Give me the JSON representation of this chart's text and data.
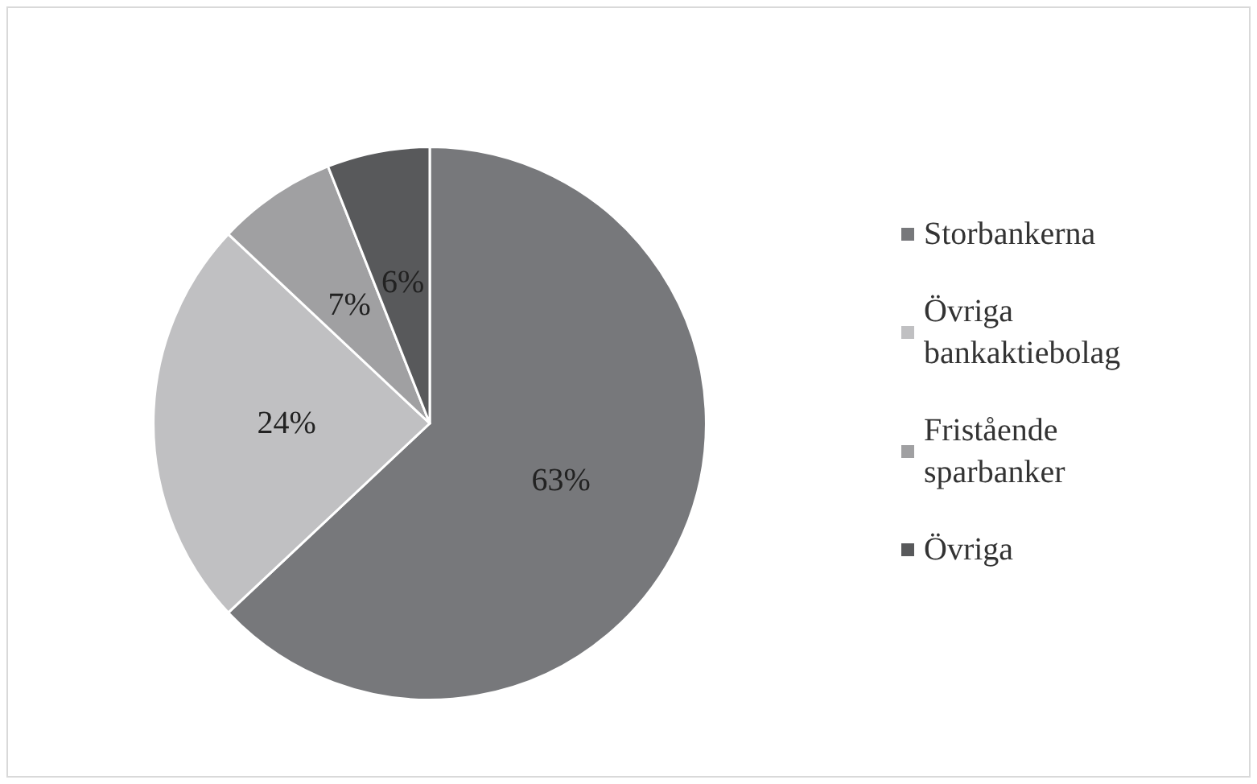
{
  "chart_data": {
    "type": "pie",
    "categories": [
      "Storbankerna",
      "Övriga bankaktiebolag",
      "Fristående sparbanker",
      "Övriga"
    ],
    "values": [
      63,
      24,
      7,
      6
    ],
    "colors": [
      "#77787b",
      "#c0c0c2",
      "#a0a0a2",
      "#58595b"
    ],
    "value_labels": [
      "63%",
      "24%",
      "7%",
      "6%"
    ],
    "legend": "right"
  }
}
